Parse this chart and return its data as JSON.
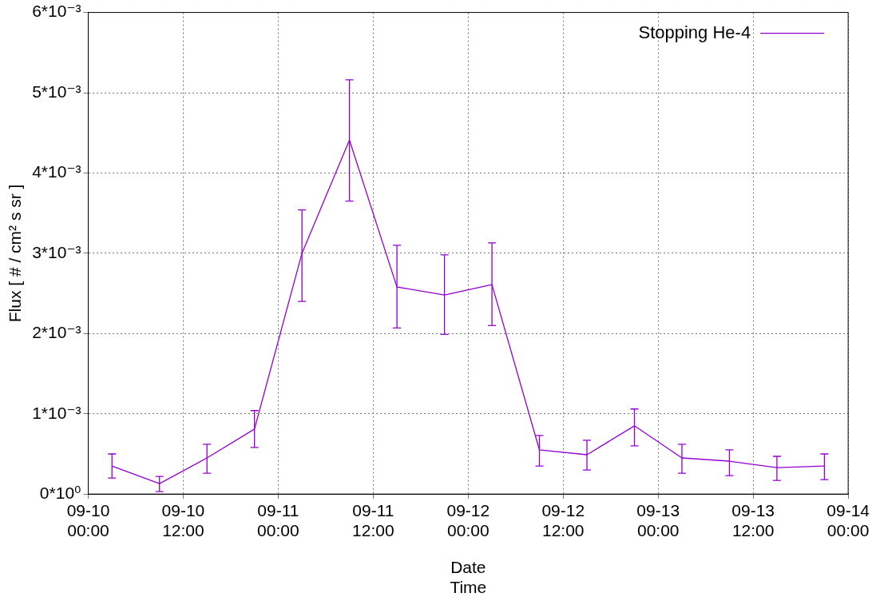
{
  "chart_data": {
    "type": "line",
    "xlabel": "Date\nTime",
    "ylabel": "Flux [ # / cm² s sr ]",
    "x": [
      "--09-10T03:00",
      "--09-10T09:00",
      "--09-10T15:00",
      "--09-10T21:00",
      "--09-11T03:00",
      "--09-11T09:00",
      "--09-11T15:00",
      "--09-11T21:00",
      "--09-12T03:00",
      "--09-12T09:00",
      "--09-12T15:00",
      "--09-12T21:00",
      "--09-13T03:00",
      "--09-13T09:00",
      "--09-13T15:00",
      "--09-13T21:00"
    ],
    "series": [
      {
        "name": "Stopping He-4",
        "color": "#9400d3",
        "values": [
          0.00035,
          0.00013,
          0.00045,
          0.00081,
          0.003,
          0.00441,
          0.00258,
          0.00248,
          0.00261,
          0.00055,
          0.00049,
          0.00085,
          0.00045,
          0.00041,
          0.00033,
          0.00035
        ],
        "errors": [
          [
            0.0002,
            0.0005
          ],
          [
            3e-05,
            0.00022
          ],
          [
            0.00026,
            0.00062
          ],
          [
            0.00058,
            0.00104
          ],
          [
            0.0024,
            0.00354
          ],
          [
            0.00365,
            0.00516
          ],
          [
            0.00207,
            0.0031
          ],
          [
            0.00199,
            0.00298
          ],
          [
            0.0021,
            0.00313
          ],
          [
            0.00035,
            0.00073
          ],
          [
            0.0003,
            0.00067
          ],
          [
            0.0006,
            0.00106
          ],
          [
            0.00026,
            0.00062
          ],
          [
            0.00023,
            0.00055
          ],
          [
            0.00017,
            0.00047
          ],
          [
            0.00018,
            0.0005
          ]
        ]
      }
    ],
    "xlim": [
      "--09-10T00:00",
      "--09-14T00:00"
    ],
    "xticks": [
      {
        "value": "--09-10T00:00",
        "label": "09-10\n00:00"
      },
      {
        "value": "--09-10T12:00",
        "label": "09-10\n12:00"
      },
      {
        "value": "--09-11T00:00",
        "label": "09-11\n00:00"
      },
      {
        "value": "--09-11T12:00",
        "label": "09-11\n12:00"
      },
      {
        "value": "--09-12T00:00",
        "label": "09-12\n00:00"
      },
      {
        "value": "--09-12T12:00",
        "label": "09-12\n12:00"
      },
      {
        "value": "--09-13T00:00",
        "label": "09-13\n00:00"
      },
      {
        "value": "--09-13T12:00",
        "label": "09-13\n12:00"
      },
      {
        "value": "--09-14T00:00",
        "label": "09-14\n00:00"
      }
    ],
    "ylim": [
      0,
      0.006
    ],
    "yticks": [
      {
        "value": 0,
        "label": "0*10⁰"
      },
      {
        "value": 0.001,
        "label": "1*10⁻³"
      },
      {
        "value": 0.002,
        "label": "2*10⁻³"
      },
      {
        "value": 0.003,
        "label": "3*10⁻³"
      },
      {
        "value": 0.004,
        "label": "4*10⁻³"
      },
      {
        "value": 0.005,
        "label": "5*10⁻³"
      },
      {
        "value": 0.006,
        "label": "6*10⁻³"
      }
    ],
    "grid": true,
    "legend": "top right",
    "marker": "none",
    "line_style": "solid"
  }
}
